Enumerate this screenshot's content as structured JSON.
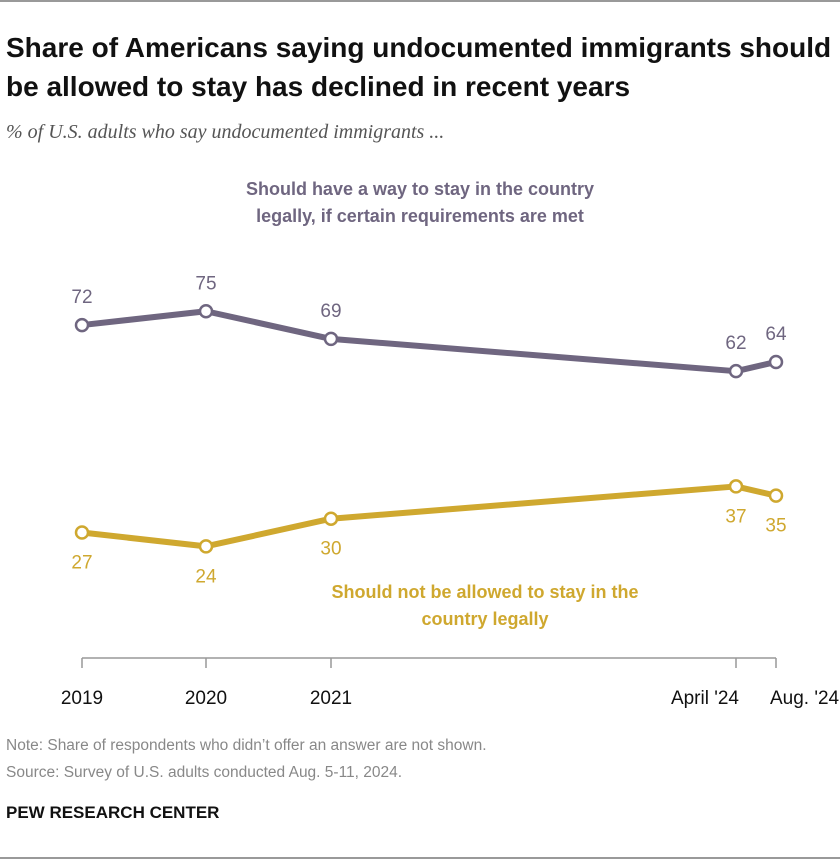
{
  "title": "Share of Americans saying undocumented immigrants should be allowed to stay has declined in recent years",
  "subtitle": "% of U.S. adults who say undocumented immigrants ...",
  "chart_data": {
    "type": "line",
    "categories": [
      "2019",
      "2020",
      "2021",
      "April '24",
      "Aug. '24"
    ],
    "series": [
      {
        "name": "Should have a way to stay in the country legally, if certain requirements are met",
        "color": "#6f6680",
        "values": [
          72,
          75,
          69,
          62,
          64
        ]
      },
      {
        "name": "Should not be allowed to stay in the country legally",
        "color": "#cfa82f",
        "values": [
          27,
          24,
          30,
          37,
          35
        ]
      }
    ]
  },
  "note": "Note: Share of respondents who didn’t offer an answer are not shown.",
  "source": "Source: Survey of U.S. adults conducted Aug. 5-11, 2024.",
  "brand": "PEW RESEARCH CENTER"
}
